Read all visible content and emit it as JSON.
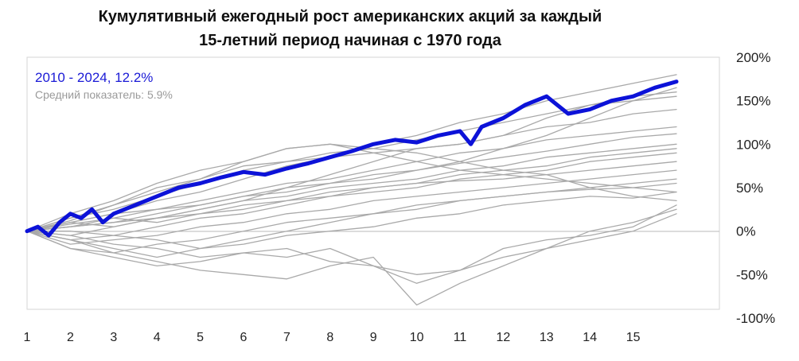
{
  "title_line1": "Кумулятивный ежегодный рост американских акций за каждый",
  "title_line2": "15-летний период начиная с 1970 года",
  "colors": {
    "highlight": "#0c12d8",
    "background_lines": "#a9a9a9",
    "frame": "#d6d6d6",
    "zero_line": "#b8b8b8"
  },
  "chart_data": {
    "type": "line",
    "title": "Кумулятивный ежегодный рост американских акций за каждый 15-летний период начиная с 1970 года",
    "xlabel": "",
    "ylabel": "",
    "x_ticks": [
      "1",
      "2",
      "3",
      "4",
      "5",
      "6",
      "7",
      "8",
      "9",
      "10",
      "11",
      "12",
      "13",
      "14",
      "15"
    ],
    "y_ticks": [
      "200%",
      "150%",
      "100%",
      "50%",
      "0%",
      "-50%",
      "-100%"
    ],
    "y_tick_values": [
      200,
      150,
      100,
      50,
      0,
      -50,
      -100
    ],
    "xlim": [
      1,
      16
    ],
    "ylim": [
      -100,
      200
    ],
    "grid": false,
    "annotations": {
      "highlight_label": "2010 - 2024, 12.2%",
      "average_label": "Средний показатель: 5.9%"
    },
    "highlight_series": {
      "name": "2010 - 2024, 12.2%",
      "x": [
        1,
        1.25,
        1.5,
        1.75,
        2,
        2.25,
        2.5,
        2.75,
        3,
        3.5,
        4,
        4.5,
        5,
        5.5,
        6,
        6.5,
        7,
        7.5,
        8,
        8.5,
        9,
        9.5,
        10,
        10.5,
        11,
        11.25,
        11.5,
        12,
        12.5,
        13,
        13.5,
        14,
        14.5,
        15,
        15.5,
        16
      ],
      "values": [
        0,
        5,
        -5,
        10,
        20,
        15,
        25,
        10,
        20,
        30,
        40,
        50,
        55,
        62,
        68,
        65,
        72,
        78,
        85,
        92,
        100,
        105,
        102,
        110,
        115,
        100,
        120,
        130,
        145,
        155,
        135,
        140,
        150,
        155,
        165,
        172
      ]
    },
    "series": [
      {
        "x": [
          1,
          2,
          3,
          4,
          5,
          6,
          7,
          8,
          9,
          10,
          11,
          12,
          13,
          14,
          15,
          16
        ],
        "values": [
          0,
          10,
          20,
          35,
          45,
          60,
          75,
          85,
          100,
          110,
          125,
          135,
          150,
          160,
          170,
          180
        ]
      },
      {
        "x": [
          1,
          2,
          3,
          4,
          5,
          6,
          7,
          8,
          9,
          10,
          11,
          12,
          13,
          14,
          15,
          16
        ],
        "values": [
          0,
          15,
          25,
          40,
          55,
          70,
          80,
          90,
          95,
          105,
          115,
          125,
          135,
          145,
          155,
          160
        ]
      },
      {
        "x": [
          1,
          2,
          3,
          4,
          5,
          6,
          7,
          8,
          9,
          10,
          11,
          12,
          13,
          14,
          15,
          16
        ],
        "values": [
          0,
          12,
          30,
          50,
          60,
          75,
          80,
          85,
          90,
          95,
          100,
          110,
          120,
          125,
          135,
          140
        ]
      },
      {
        "x": [
          1,
          2,
          3,
          4,
          5,
          6,
          7,
          8,
          9,
          10,
          11,
          12,
          13,
          14,
          15,
          16
        ],
        "values": [
          0,
          8,
          15,
          25,
          35,
          45,
          55,
          60,
          70,
          80,
          90,
          95,
          105,
          110,
          115,
          120
        ]
      },
      {
        "x": [
          1,
          2,
          3,
          4,
          5,
          6,
          7,
          8,
          9,
          10,
          11,
          12,
          13,
          14,
          15,
          16
        ],
        "values": [
          0,
          5,
          10,
          20,
          30,
          40,
          50,
          55,
          65,
          70,
          78,
          85,
          92,
          100,
          108,
          112
        ]
      },
      {
        "x": [
          1,
          2,
          3,
          4,
          5,
          6,
          7,
          8,
          9,
          10,
          11,
          12,
          13,
          14,
          15,
          16
        ],
        "values": [
          0,
          -5,
          5,
          15,
          25,
          35,
          40,
          50,
          55,
          60,
          70,
          75,
          85,
          90,
          95,
          100
        ]
      },
      {
        "x": [
          1,
          2,
          3,
          4,
          5,
          6,
          7,
          8,
          9,
          10,
          11,
          12,
          13,
          14,
          15,
          16
        ],
        "values": [
          0,
          10,
          5,
          15,
          20,
          30,
          35,
          45,
          50,
          55,
          65,
          70,
          75,
          85,
          90,
          95
        ]
      },
      {
        "x": [
          1,
          2,
          3,
          4,
          5,
          6,
          7,
          8,
          9,
          10,
          11,
          12,
          13,
          14,
          15,
          16
        ],
        "values": [
          0,
          -10,
          -5,
          5,
          15,
          20,
          30,
          40,
          45,
          50,
          60,
          65,
          70,
          80,
          85,
          90
        ]
      },
      {
        "x": [
          1,
          2,
          3,
          4,
          5,
          6,
          7,
          8,
          9,
          10,
          11,
          12,
          13,
          14,
          15,
          16
        ],
        "values": [
          0,
          5,
          15,
          10,
          20,
          25,
          35,
          40,
          50,
          55,
          58,
          60,
          65,
          70,
          75,
          80
        ]
      },
      {
        "x": [
          1,
          2,
          3,
          4,
          5,
          6,
          7,
          8,
          9,
          10,
          11,
          12,
          13,
          14,
          15,
          16
        ],
        "values": [
          0,
          -15,
          -10,
          -5,
          5,
          10,
          20,
          25,
          35,
          40,
          45,
          50,
          55,
          60,
          65,
          70
        ]
      },
      {
        "x": [
          1,
          2,
          3,
          4,
          5,
          6,
          7,
          8,
          9,
          10,
          11,
          12,
          13,
          14,
          15,
          16
        ],
        "values": [
          0,
          -20,
          -25,
          -15,
          -10,
          0,
          10,
          15,
          20,
          25,
          35,
          40,
          45,
          50,
          55,
          60
        ]
      },
      {
        "x": [
          1,
          2,
          3,
          4,
          5,
          6,
          7,
          8,
          9,
          10,
          11,
          12,
          13,
          14,
          15,
          16
        ],
        "values": [
          0,
          -10,
          -20,
          -30,
          -20,
          -10,
          0,
          10,
          20,
          30,
          35,
          40,
          45,
          48,
          50,
          55
        ]
      },
      {
        "x": [
          1,
          2,
          3,
          4,
          5,
          6,
          7,
          8,
          9,
          10,
          11,
          12,
          13,
          14,
          15,
          16
        ],
        "values": [
          0,
          -20,
          -30,
          -40,
          -35,
          -25,
          -30,
          -20,
          -40,
          -60,
          -45,
          -30,
          -20,
          -10,
          0,
          20
        ]
      },
      {
        "x": [
          1,
          2,
          3,
          4,
          5,
          6,
          7,
          8,
          9,
          10,
          11,
          12,
          13,
          14,
          15,
          16
        ],
        "values": [
          0,
          -10,
          -25,
          -35,
          -45,
          -50,
          -55,
          -40,
          -30,
          -85,
          -60,
          -40,
          -20,
          0,
          10,
          25
        ]
      },
      {
        "x": [
          1,
          2,
          3,
          4,
          5,
          6,
          7,
          8,
          9,
          10,
          11,
          12,
          13,
          14,
          15,
          16
        ],
        "values": [
          0,
          20,
          35,
          55,
          70,
          80,
          95,
          100,
          90,
          80,
          70,
          65,
          60,
          55,
          50,
          45
        ]
      },
      {
        "x": [
          1,
          2,
          3,
          4,
          5,
          6,
          7,
          8,
          9,
          10,
          11,
          12,
          13,
          14,
          15,
          16
        ],
        "values": [
          0,
          15,
          30,
          45,
          60,
          80,
          95,
          100,
          95,
          90,
          80,
          70,
          65,
          50,
          40,
          35
        ]
      },
      {
        "x": [
          1,
          2,
          3,
          4,
          5,
          6,
          7,
          8,
          9,
          10,
          11,
          12,
          13,
          14,
          15,
          16
        ],
        "values": [
          0,
          -5,
          -15,
          -20,
          -30,
          -25,
          -20,
          -35,
          -40,
          -50,
          -45,
          -20,
          -10,
          -5,
          5,
          30
        ]
      },
      {
        "x": [
          1,
          2,
          3,
          4,
          5,
          6,
          7,
          8,
          9,
          10,
          11,
          12,
          13,
          14,
          15,
          16
        ],
        "values": [
          0,
          10,
          20,
          25,
          30,
          40,
          45,
          55,
          60,
          70,
          80,
          95,
          110,
          130,
          150,
          165
        ]
      },
      {
        "x": [
          1,
          2,
          3,
          4,
          5,
          6,
          7,
          8,
          9,
          10,
          11,
          12,
          13,
          14,
          15,
          16
        ],
        "values": [
          0,
          5,
          10,
          15,
          25,
          35,
          50,
          65,
          80,
          95,
          100,
          110,
          130,
          145,
          150,
          155
        ]
      },
      {
        "x": [
          1,
          2,
          3,
          4,
          5,
          6,
          7,
          8,
          9,
          10,
          11,
          12,
          13,
          14,
          15,
          16
        ],
        "values": [
          0,
          0,
          -5,
          -10,
          -20,
          -15,
          -5,
          0,
          5,
          15,
          20,
          30,
          35,
          40,
          38,
          45
        ]
      }
    ]
  }
}
